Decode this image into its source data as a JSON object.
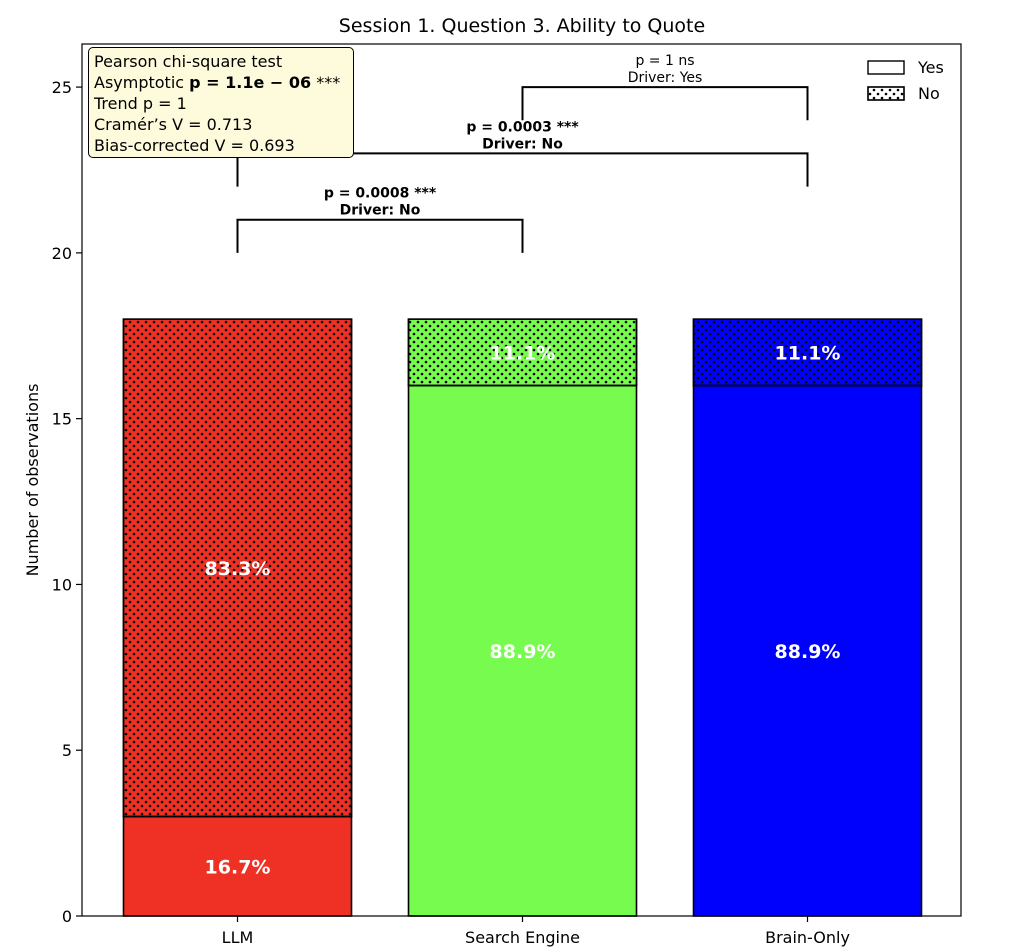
{
  "chart_data": {
    "type": "bar",
    "stacked": true,
    "title": "Session 1. Question 3. Ability to Quote",
    "xlabel": "",
    "ylabel": "Number of observations",
    "categories": [
      "LLM",
      "Search Engine",
      "Brain-Only"
    ],
    "ylim": [
      0,
      26.3
    ],
    "yticks": [
      0,
      5,
      10,
      15,
      20,
      25
    ],
    "grid": false,
    "legend": {
      "placement": "top-right",
      "entries": [
        "Yes",
        "No"
      ]
    },
    "category_colors": [
      "#ee3124",
      "#77fb4f",
      "#0000fd"
    ],
    "series": [
      {
        "name": "Yes",
        "pattern": "solid",
        "values": [
          3,
          16,
          16
        ],
        "labels": [
          "16.7%",
          "88.9%",
          "88.9%"
        ]
      },
      {
        "name": "No",
        "pattern": "dotted",
        "values": [
          15,
          2,
          2
        ],
        "labels": [
          "83.3%",
          "11.1%",
          "11.1%"
        ]
      }
    ],
    "stats_box": {
      "line1": "Pearson chi-square test",
      "line2_prefix": "Asymptotic ",
      "line2_bold": "p = 1.1e − 06",
      "line2_suffix": " ***",
      "line3": "Trend p = 1",
      "line4": "Cramér’s V = 0.713",
      "line5": "Bias-corrected V = 0.693"
    },
    "comparisons": [
      {
        "from": 0,
        "to": 1,
        "y": 21,
        "line1": "p = 0.0008 ***",
        "line2": "Driver: No",
        "bold": true
      },
      {
        "from": 0,
        "to": 2,
        "y": 23,
        "line1": "p = 0.0003 ***",
        "line2": "Driver: No",
        "bold": true
      },
      {
        "from": 1,
        "to": 2,
        "y": 25,
        "line1": "p = 1 ns",
        "line2": "Driver: Yes",
        "bold": false
      }
    ]
  }
}
